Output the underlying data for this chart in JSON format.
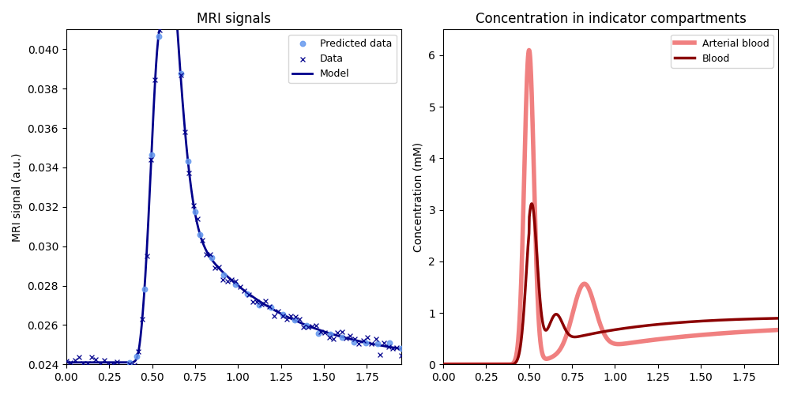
{
  "title_left": "MRI signals",
  "title_right": "Concentration in indicator compartments",
  "ylabel_left": "MRI signal (a.u.)",
  "ylabel_right": "Concentration (mM)",
  "xlim": [
    0.0,
    1.95
  ],
  "ylim_left": [
    0.024,
    0.041
  ],
  "ylim_right": [
    0.0,
    6.5
  ],
  "model_color": "#00008B",
  "predicted_color": "#6699EE",
  "data_color": "#00008B",
  "arterial_color": "#F08080",
  "blood_color": "#8B0000",
  "model_linewidth": 2.0,
  "arterial_linewidth": 4.0,
  "blood_linewidth": 2.5
}
